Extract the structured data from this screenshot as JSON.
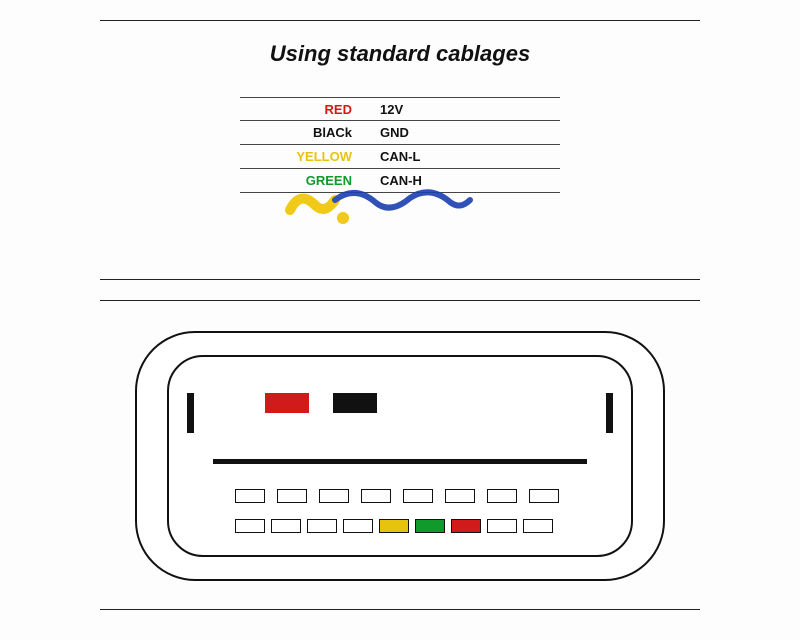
{
  "title": "Using standard cablages",
  "legend": {
    "rows": [
      {
        "label": "RED",
        "color": "#d11a1a",
        "signal": "12V"
      },
      {
        "label": "BlACk",
        "color": "#111111",
        "signal": "GND"
      },
      {
        "label": "YELLOW",
        "color": "#e6c40e",
        "signal": "CAN-L"
      },
      {
        "label": "GREEN",
        "color": "#0f9a2b",
        "signal": "CAN-H"
      }
    ],
    "font_size": 13,
    "border_color": "#444"
  },
  "connector": {
    "outer_radius": 60,
    "inner_radius": 36,
    "stroke": "#111",
    "top_pins": [
      {
        "fill": "#d11a1a",
        "border": "none"
      },
      {
        "fill": "#111111",
        "border": "none"
      }
    ],
    "mid_row": {
      "count": 8,
      "pins": [
        {
          "fill": "#fff"
        },
        {
          "fill": "#fff"
        },
        {
          "fill": "#fff"
        },
        {
          "fill": "#fff"
        },
        {
          "fill": "#fff"
        },
        {
          "fill": "#fff"
        },
        {
          "fill": "#fff"
        },
        {
          "fill": "#fff"
        }
      ]
    },
    "bot_row": {
      "count": 9,
      "pins": [
        {
          "fill": "#fff"
        },
        {
          "fill": "#fff"
        },
        {
          "fill": "#fff"
        },
        {
          "fill": "#fff"
        },
        {
          "fill": "#e6c40e"
        },
        {
          "fill": "#0f9a2b"
        },
        {
          "fill": "#d11a1a"
        },
        {
          "fill": "#fff"
        },
        {
          "fill": "#fff"
        }
      ]
    }
  },
  "colors": {
    "background": "#fdfdfd",
    "text": "#111",
    "rule": "#222"
  },
  "typography": {
    "title_size": 22,
    "title_weight": 700,
    "body_family": "Arial"
  }
}
